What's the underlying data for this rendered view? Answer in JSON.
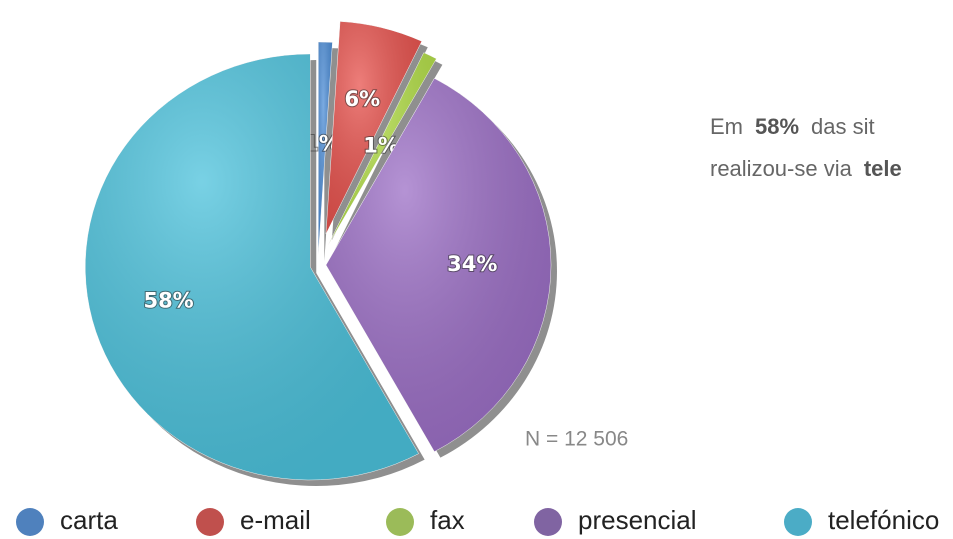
{
  "chart_data": {
    "type": "pie",
    "categories": [
      "carta",
      "e-mail",
      "fax",
      "presencial",
      "telefónico"
    ],
    "values": [
      1,
      6,
      1,
      34,
      58
    ],
    "value_labels": [
      "1%",
      "6%",
      "1%",
      "34%",
      "58%"
    ],
    "colors": [
      "#4f8fd8",
      "#e8534e",
      "#b5e04a",
      "#9c6fc6",
      "#4cc2dc"
    ],
    "legend_colors": [
      "#4f81bd",
      "#c0504d",
      "#9bbb59",
      "#8064a2",
      "#4bacc6"
    ],
    "annotation": "N = 12 506",
    "note": [
      [
        {
          "text": "Em",
          "bold": false
        },
        {
          "text": "58%",
          "bold": true
        },
        {
          "text": "das sit",
          "bold": false
        }
      ],
      [
        {
          "text": "realizou-se via",
          "bold": false
        },
        {
          "text": "tele",
          "bold": true
        }
      ]
    ]
  }
}
